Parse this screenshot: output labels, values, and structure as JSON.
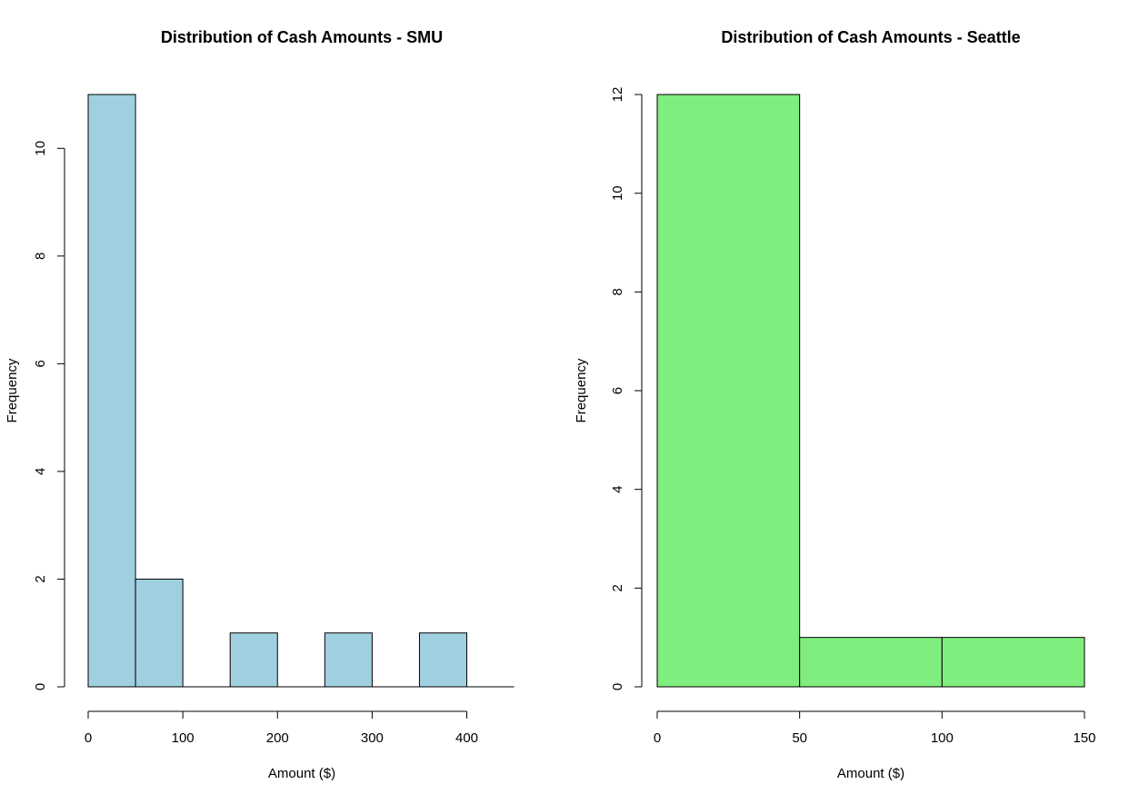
{
  "chart_data": [
    {
      "type": "bar",
      "title": "Distribution of Cash Amounts - SMU",
      "xlabel": "Amount ($)",
      "ylabel": "Frequency",
      "bins": [
        [
          0,
          50
        ],
        [
          50,
          100
        ],
        [
          100,
          150
        ],
        [
          150,
          200
        ],
        [
          200,
          250
        ],
        [
          250,
          300
        ],
        [
          300,
          350
        ],
        [
          350,
          400
        ],
        [
          400,
          450
        ]
      ],
      "values": [
        11,
        2,
        0,
        1,
        0,
        1,
        0,
        1,
        0
      ],
      "xlim": [
        0,
        450
      ],
      "ylim": [
        0,
        11
      ],
      "xticks": [
        "0",
        "100",
        "200",
        "300",
        "400"
      ],
      "yticks": [
        "0",
        "2",
        "4",
        "6",
        "8",
        "10"
      ],
      "grid": false,
      "color": "#A0D0E0"
    },
    {
      "type": "bar",
      "title": "Distribution of Cash Amounts - Seattle",
      "xlabel": "Amount ($)",
      "ylabel": "Frequency",
      "bins": [
        [
          0,
          50
        ],
        [
          50,
          100
        ],
        [
          100,
          150
        ]
      ],
      "values": [
        12,
        1,
        1
      ],
      "xlim": [
        0,
        150
      ],
      "ylim": [
        0,
        12
      ],
      "xticks": [
        "0",
        "50",
        "100",
        "150"
      ],
      "yticks": [
        "0",
        "2",
        "4",
        "6",
        "8",
        "10",
        "12"
      ],
      "grid": false,
      "color": "#80EE7E"
    }
  ]
}
